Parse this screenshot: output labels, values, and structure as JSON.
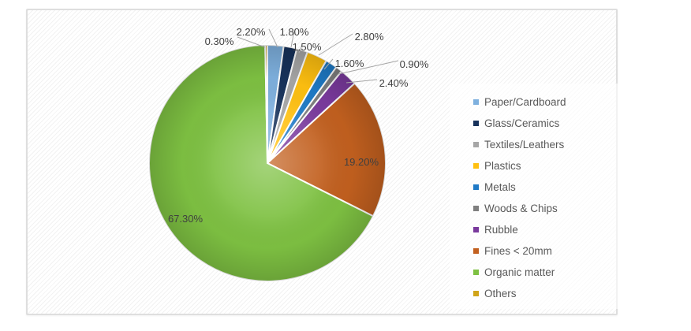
{
  "chart_data": {
    "type": "pie",
    "title": "",
    "legend_position": "right",
    "start_angle_deg": 0,
    "direction": "clockwise",
    "label_format": "percent, 2 decimals",
    "slices": [
      {
        "label": "Paper/Cardboard",
        "value": 2.2,
        "display": "2.20%",
        "color": "#7EB0DE"
      },
      {
        "label": "Glass/Ceramics",
        "value": 1.8,
        "display": "1.80%",
        "color": "#17325B"
      },
      {
        "label": "Textiles/Leathers",
        "value": 1.5,
        "display": "1.50%",
        "color": "#A6A6A6"
      },
      {
        "label": "Plastics",
        "value": 2.8,
        "display": "2.80%",
        "color": "#FFC010"
      },
      {
        "label": "Metals",
        "value": 1.6,
        "display": "1.60%",
        "color": "#1F7AC6"
      },
      {
        "label": "Woods & Chips",
        "value": 0.9,
        "display": "0.90%",
        "color": "#7F7F7F"
      },
      {
        "label": "Rubble",
        "value": 2.4,
        "display": "2.40%",
        "color": "#7A3A9D"
      },
      {
        "label": "Fines < 20mm",
        "value": 19.2,
        "display": "19.20%",
        "color": "#C2601F"
      },
      {
        "label": "Organic matter",
        "value": 67.3,
        "display": "67.30%",
        "color": "#7EC142"
      },
      {
        "label": "Others",
        "value": 0.3,
        "display": "0.30%",
        "color": "#D0A419"
      }
    ],
    "colors": {
      "label_text": "#404040",
      "legend_text": "#595959",
      "leader_line": "#A6A6A6",
      "panel_border": "#DEDEDE",
      "slice_separator": "#FFFFFF"
    }
  }
}
